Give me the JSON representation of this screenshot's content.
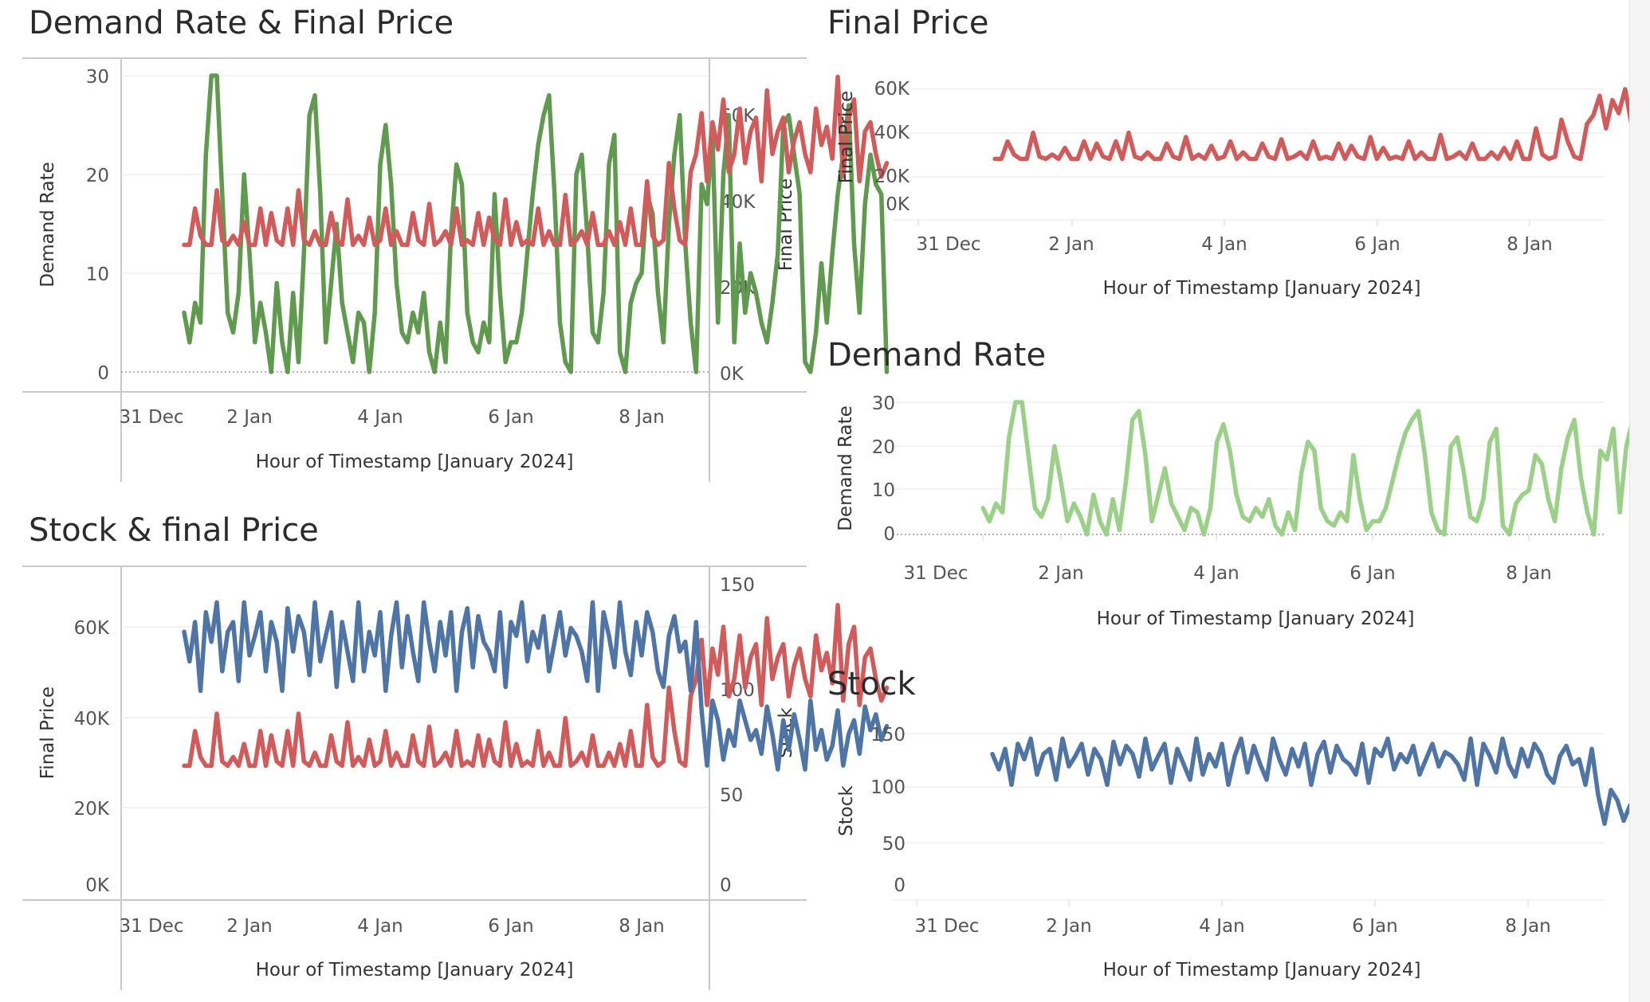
{
  "colors": {
    "final_price": "#d15b5b",
    "demand_rate": "#5f9a4f",
    "demand_rate_light": "#9bd088",
    "stock": "#4f75a6"
  },
  "chart_data": [
    {
      "id": "c1",
      "type": "line",
      "title": "Demand Rate & Final Price",
      "xlabel": "Hour of Timestamp [January 2024]",
      "x_ticks": [
        "31 Dec",
        "2 Jan",
        "4 Jan",
        "6 Jan",
        "8 Jan"
      ],
      "x_range": [
        "2023-12-31T00:00",
        "2024-01-08T08:00"
      ],
      "axes": {
        "left": {
          "label": "Demand Rate",
          "min": 0,
          "max": 30,
          "ticks": [
            "0",
            "10",
            "20",
            "30"
          ]
        },
        "right": {
          "label": "Final Price",
          "min": 0,
          "max": 60000,
          "ticks": [
            "0K",
            "20K",
            "40K",
            "60K"
          ]
        }
      },
      "series": [
        {
          "name": "Final Price",
          "axis": "right",
          "color": "#d15b5b",
          "start": "2024-01-01T00:00",
          "step_hours": 2,
          "values": [
            28000,
            28000,
            36000,
            30000,
            28000,
            28000,
            40000,
            29000,
            28000,
            30000,
            28000,
            33000,
            28000,
            28000,
            36000,
            28000,
            35000,
            29000,
            28000,
            36000,
            28000,
            40000,
            29000,
            28000,
            31000,
            28000,
            28000,
            35000,
            29000,
            28000,
            38000,
            28000,
            30000,
            28000,
            34000,
            28000,
            29000,
            36000,
            28000,
            31000,
            28000,
            28000,
            35000,
            29000,
            28000,
            37000,
            28000,
            29000,
            31000,
            28000,
            36000,
            28000,
            29000,
            28000,
            35000,
            28000,
            34000,
            29000,
            28000,
            38000,
            28000,
            33000,
            28000,
            29000,
            28000,
            36000,
            28000,
            31000,
            28000,
            28000,
            39000,
            28000,
            29000,
            31000,
            28000,
            35000,
            28000,
            28000,
            31000,
            28000,
            33000,
            28000,
            36000,
            28000,
            28000,
            42000,
            30000,
            28000,
            29000,
            46000,
            36000,
            29000,
            28000,
            44000,
            48000,
            57000,
            42000,
            55000,
            49000,
            60000,
            44000,
            48000,
            58000,
            46000,
            53000,
            56000,
            42000,
            62000,
            48000,
            53000,
            56000,
            44000,
            51000,
            55000,
            48000,
            44000,
            58000,
            50000,
            54000,
            47000,
            65000,
            43000,
            56000,
            60000,
            42000,
            53000,
            55000,
            48000,
            43000,
            46000
          ]
        },
        {
          "name": "Demand Rate",
          "axis": "left",
          "color": "#5f9a4f",
          "start": "2024-01-01T00:00",
          "step_hours": 2,
          "values": [
            6,
            3,
            7,
            5,
            22,
            30,
            30,
            18,
            6,
            4,
            8,
            20,
            12,
            3,
            7,
            4,
            0,
            9,
            3,
            0,
            8,
            1,
            12,
            26,
            28,
            18,
            3,
            9,
            15,
            7,
            4,
            1,
            6,
            5,
            0,
            6,
            21,
            25,
            19,
            9,
            4,
            3,
            6,
            4,
            8,
            2,
            0,
            5,
            1,
            14,
            21,
            19,
            6,
            3,
            2,
            5,
            3,
            18,
            8,
            1,
            3,
            3,
            6,
            12,
            18,
            23,
            26,
            28,
            18,
            5,
            1,
            0,
            20,
            22,
            14,
            4,
            3,
            8,
            21,
            24,
            2,
            0,
            7,
            9,
            10,
            18,
            16,
            8,
            3,
            15,
            22,
            26,
            13,
            5,
            0,
            19,
            17,
            24,
            5,
            20,
            26,
            3,
            13,
            6,
            10,
            8,
            5,
            3,
            7,
            12,
            25,
            26,
            22,
            18,
            1,
            0,
            4,
            11,
            5,
            12,
            18,
            22,
            27,
            13,
            6,
            17,
            22,
            19,
            18,
            0
          ]
        }
      ]
    },
    {
      "id": "c2",
      "type": "line",
      "title": "Final Price",
      "xlabel": "Hour of Timestamp [January 2024]",
      "x_ticks": [
        "31 Dec",
        "2 Jan",
        "4 Jan",
        "6 Jan",
        "8 Jan"
      ],
      "x_range": [
        "2023-12-31T00:00",
        "2024-01-08T08:00"
      ],
      "axes": {
        "left": {
          "label": "Final Price",
          "min": 0,
          "max": 60000,
          "ticks": [
            "0K",
            "20K",
            "40K",
            "60K"
          ]
        }
      },
      "series": [
        {
          "ref": "c1.Final Price",
          "axis": "left",
          "color": "#d15b5b"
        }
      ]
    },
    {
      "id": "c3",
      "type": "line",
      "title": "Demand Rate",
      "xlabel": "Hour of Timestamp [January 2024]",
      "x_ticks": [
        "31 Dec",
        "2 Jan",
        "4 Jan",
        "6 Jan",
        "8 Jan"
      ],
      "x_range": [
        "2023-12-31T00:00",
        "2024-01-08T08:00"
      ],
      "axes": {
        "left": {
          "label": "Demand Rate",
          "min": 0,
          "max": 30,
          "ticks": [
            "0",
            "10",
            "20",
            "30"
          ]
        }
      },
      "series": [
        {
          "ref": "c1.Demand Rate",
          "axis": "left",
          "color": "#9bd088"
        }
      ]
    },
    {
      "id": "c4",
      "type": "line",
      "title": "Stock & final Price",
      "xlabel": "Hour of Timestamp [January 2024]",
      "x_ticks": [
        "31 Dec",
        "2 Jan",
        "4 Jan",
        "6 Jan",
        "8 Jan"
      ],
      "x_range": [
        "2023-12-31T00:00",
        "2024-01-08T08:00"
      ],
      "axes": {
        "left": {
          "label": "Final Price",
          "min": 0,
          "max": 60000,
          "ticks": [
            "0K",
            "20K",
            "40K",
            "60K"
          ]
        },
        "right": {
          "label": "Stock",
          "min": 0,
          "max": 150,
          "ticks": [
            "0",
            "50",
            "100",
            "150"
          ]
        }
      },
      "series": [
        {
          "ref": "c1.Final Price",
          "axis": "left",
          "color": "#d15b5b"
        },
        {
          "name": "Stock",
          "axis": "right",
          "color": "#4f75a6",
          "start": "2024-01-01T00:00",
          "step_hours": 2,
          "values": [
            130,
            115,
            135,
            100,
            140,
            125,
            145,
            110,
            130,
            135,
            105,
            145,
            118,
            128,
            140,
            110,
            135,
            125,
            100,
            142,
            120,
            138,
            130,
            108,
            145,
            115,
            128,
            140,
            102,
            135,
            120,
            105,
            145,
            110,
            130,
            118,
            140,
            100,
            128,
            145,
            112,
            138,
            120,
            105,
            145,
            125,
            110,
            135,
            118,
            140,
            100,
            130,
            142,
            112,
            138,
            125,
            120,
            110,
            140,
            102,
            135,
            128,
            145,
            115,
            130,
            122,
            138,
            110,
            125,
            140,
            118,
            132,
            128,
            120,
            105,
            145,
            100,
            140,
            128,
            112,
            145,
            120,
            108,
            135,
            118,
            140,
            130,
            110,
            102,
            128,
            138,
            120,
            125,
            100,
            135,
            90,
            62,
            95,
            85,
            65,
            80,
            72,
            95,
            85,
            75,
            80,
            68,
            92,
            78,
            60,
            85,
            70,
            88,
            75,
            60,
            95,
            70,
            80,
            65,
            72,
            90,
            62,
            78,
            85,
            68,
            92,
            80,
            88,
            75,
            82
          ]
        }
      ]
    },
    {
      "id": "c5",
      "type": "line",
      "title": "Stock",
      "xlabel": "Hour of Timestamp [January 2024]",
      "x_ticks": [
        "31 Dec",
        "2 Jan",
        "4 Jan",
        "6 Jan",
        "8 Jan"
      ],
      "x_range": [
        "2023-12-31T00:00",
        "2024-01-08T08:00"
      ],
      "axes": {
        "left": {
          "label": "Stock",
          "min": 0,
          "max": 150,
          "ticks": [
            "0",
            "50",
            "100",
            "150"
          ]
        }
      },
      "series": [
        {
          "ref": "c4.Stock",
          "axis": "left",
          "color": "#4f75a6"
        }
      ]
    }
  ]
}
